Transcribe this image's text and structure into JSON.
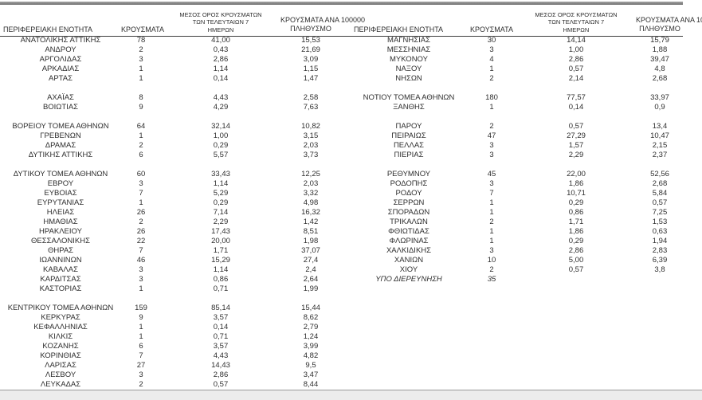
{
  "header": {
    "region": "ΠΕΡΙΦΕΡΕΙΑΚΗ ΕΝΟΤΗΤΑ",
    "cases": "ΚΡΟΥΣΜΑΤΑ",
    "avg7_lines": [
      "ΜΕΣΟΣ ΟΡΟΣ ΚΡΟΥΣΜΑΤΩΝ",
      "ΤΩΝ ΤΕΛΕΥΤΑΙΩΝ 7",
      "ΗΜΕΡΩΝ"
    ],
    "per100k_lines": [
      "ΚΡΟΥΣΜΑΤΑ ΑΝΑ 100000",
      "ΠΛΗΘΥΣΜΟ"
    ]
  },
  "left_table": {
    "rows": [
      {
        "region": "ΑΝΑΤΟΛΙΚΗΣ ΑΤΤΙΚΗΣ",
        "cases": "78",
        "avg": "41,00",
        "per": "15,53"
      },
      {
        "region": "ΑΝΔΡΟΥ",
        "cases": "2",
        "avg": "0,43",
        "per": "21,69"
      },
      {
        "region": "ΑΡΓΟΛΙΔΑΣ",
        "cases": "3",
        "avg": "2,86",
        "per": "3,09"
      },
      {
        "region": "ΑΡΚΑΔΙΑΣ",
        "cases": "1",
        "avg": "1,14",
        "per": "1,15"
      },
      {
        "region": "ΑΡΤΑΣ",
        "cases": "1",
        "avg": "0,14",
        "per": "1,47"
      },
      {
        "blank": true
      },
      {
        "region": "ΑΧΑΪΑΣ",
        "cases": "8",
        "avg": "4,43",
        "per": "2,58"
      },
      {
        "region": "ΒΟΙΩΤΙΑΣ",
        "cases": "9",
        "avg": "4,29",
        "per": "7,63"
      },
      {
        "blank": true
      },
      {
        "region": "ΒΟΡΕΙΟΥ ΤΟΜΕΑ ΑΘΗΝΩΝ",
        "cases": "64",
        "avg": "32,14",
        "per": "10,82"
      },
      {
        "region": "ΓΡΕΒΕΝΩΝ",
        "cases": "1",
        "avg": "1,00",
        "per": "3,15"
      },
      {
        "region": "ΔΡΑΜΑΣ",
        "cases": "2",
        "avg": "0,29",
        "per": "2,03"
      },
      {
        "region": "ΔΥΤΙΚΗΣ ΑΤΤΙΚΗΣ",
        "cases": "6",
        "avg": "5,57",
        "per": "3,73"
      },
      {
        "blank": true
      },
      {
        "region": "ΔΥΤΙΚΟΥ ΤΟΜΕΑ ΑΘΗΝΩΝ",
        "cases": "60",
        "avg": "33,43",
        "per": "12,25"
      },
      {
        "region": "ΕΒΡΟΥ",
        "cases": "3",
        "avg": "1,14",
        "per": "2,03"
      },
      {
        "region": "ΕΥΒΟΙΑΣ",
        "cases": "7",
        "avg": "5,29",
        "per": "3,32"
      },
      {
        "region": "ΕΥΡΥΤΑΝΙΑΣ",
        "cases": "1",
        "avg": "0,29",
        "per": "4,98"
      },
      {
        "region": "ΗΛΕΙΑΣ",
        "cases": "26",
        "avg": "7,14",
        "per": "16,32"
      },
      {
        "region": "ΗΜΑΘΙΑΣ",
        "cases": "2",
        "avg": "2,29",
        "per": "1,42"
      },
      {
        "region": "ΗΡΑΚΛΕΙΟΥ",
        "cases": "26",
        "avg": "17,43",
        "per": "8,51"
      },
      {
        "region": "ΘΕΣΣΑΛΟΝΙΚΗΣ",
        "cases": "22",
        "avg": "20,00",
        "per": "1,98"
      },
      {
        "region": "ΘΗΡΑΣ",
        "cases": "7",
        "avg": "1,71",
        "per": "37,07"
      },
      {
        "region": "ΙΩΑΝΝΙΝΩΝ",
        "cases": "46",
        "avg": "15,29",
        "per": "27,4"
      },
      {
        "region": "ΚΑΒΑΛΑΣ",
        "cases": "3",
        "avg": "1,14",
        "per": "2,4"
      },
      {
        "region": "ΚΑΡΔΙΤΣΑΣ",
        "cases": "3",
        "avg": "0,86",
        "per": "2,64"
      },
      {
        "region": "ΚΑΣΤΟΡΙΑΣ",
        "cases": "1",
        "avg": "0,71",
        "per": "1,99"
      },
      {
        "blank": true
      },
      {
        "region": "ΚΕΝΤΡΙΚΟΥ ΤΟΜΕΑ ΑΘΗΝΩΝ",
        "cases": "159",
        "avg": "85,14",
        "per": "15,44"
      },
      {
        "region": "ΚΕΡΚΥΡΑΣ",
        "cases": "9",
        "avg": "3,57",
        "per": "8,62"
      },
      {
        "region": "ΚΕΦΑΛΛΗΝΙΑΣ",
        "cases": "1",
        "avg": "0,14",
        "per": "2,79"
      },
      {
        "region": "ΚΙΛΚΙΣ",
        "cases": "1",
        "avg": "0,71",
        "per": "1,24"
      },
      {
        "region": "ΚΟΖΑΝΗΣ",
        "cases": "6",
        "avg": "3,57",
        "per": "3,99"
      },
      {
        "region": "ΚΟΡΙΝΘΙΑΣ",
        "cases": "7",
        "avg": "4,43",
        "per": "4,82"
      },
      {
        "region": "ΛΑΡΙΣΑΣ",
        "cases": "27",
        "avg": "14,43",
        "per": "9,5"
      },
      {
        "region": "ΛΕΣΒΟΥ",
        "cases": "3",
        "avg": "2,86",
        "per": "3,47"
      },
      {
        "region": "ΛΕΥΚΑΔΑΣ",
        "cases": "2",
        "avg": "0,57",
        "per": "8,44"
      }
    ]
  },
  "right_table": {
    "rows": [
      {
        "region": "ΜΑΓΝΗΣΙΑΣ",
        "cases": "30",
        "avg": "14,14",
        "per": "15,79"
      },
      {
        "region": "ΜΕΣΣΗΝΙΑΣ",
        "cases": "3",
        "avg": "1,00",
        "per": "1,88"
      },
      {
        "region": "ΜΥΚΟΝΟΥ",
        "cases": "4",
        "avg": "2,86",
        "per": "39,47"
      },
      {
        "region": "ΝΑΞΟΥ",
        "cases": "1",
        "avg": "0,57",
        "per": "4,8"
      },
      {
        "region": "ΝΗΣΩΝ",
        "cases": "2",
        "avg": "2,14",
        "per": "2,68"
      },
      {
        "blank": true
      },
      {
        "region": "ΝΟΤΙΟΥ ΤΟΜΕΑ ΑΘΗΝΩΝ",
        "cases": "180",
        "avg": "77,57",
        "per": "33,97"
      },
      {
        "region": "ΞΑΝΘΗΣ",
        "cases": "1",
        "avg": "0,14",
        "per": "0,9"
      },
      {
        "blank": true
      },
      {
        "region": "ΠΑΡΟΥ",
        "cases": "2",
        "avg": "0,57",
        "per": "13,4"
      },
      {
        "region": "ΠΕΙΡΑΙΩΣ",
        "cases": "47",
        "avg": "27,29",
        "per": "10,47"
      },
      {
        "region": "ΠΕΛΛΑΣ",
        "cases": "3",
        "avg": "1,57",
        "per": "2,15"
      },
      {
        "region": "ΠΙΕΡΙΑΣ",
        "cases": "3",
        "avg": "2,29",
        "per": "2,37"
      },
      {
        "blank": true
      },
      {
        "region": "ΡΕΘΥΜΝΟΥ",
        "cases": "45",
        "avg": "22,00",
        "per": "52,56"
      },
      {
        "region": "ΡΟΔΟΠΗΣ",
        "cases": "3",
        "avg": "1,86",
        "per": "2,68"
      },
      {
        "region": "ΡΟΔΟΥ",
        "cases": "7",
        "avg": "10,71",
        "per": "5,84"
      },
      {
        "region": "ΣΕΡΡΩΝ",
        "cases": "1",
        "avg": "0,29",
        "per": "0,57"
      },
      {
        "region": "ΣΠΟΡΑΔΩΝ",
        "cases": "1",
        "avg": "0,86",
        "per": "7,25"
      },
      {
        "region": "ΤΡΙΚΑΛΩΝ",
        "cases": "2",
        "avg": "1,71",
        "per": "1,53"
      },
      {
        "region": "ΦΘΙΩΤΙΔΑΣ",
        "cases": "1",
        "avg": "1,86",
        "per": "0,63"
      },
      {
        "region": "ΦΛΩΡΙΝΑΣ",
        "cases": "1",
        "avg": "0,29",
        "per": "1,94"
      },
      {
        "region": "ΧΑΛΚΙΔΙΚΗΣ",
        "cases": "3",
        "avg": "2,86",
        "per": "2,83"
      },
      {
        "region": "ΧΑΝΙΩΝ",
        "cases": "10",
        "avg": "5,00",
        "per": "6,39"
      },
      {
        "region": "ΧΙΟΥ",
        "cases": "2",
        "avg": "0,57",
        "per": "3,8"
      },
      {
        "region": "ΥΠΟ ΔΙΕΡΕΥΝΗΣΗ",
        "cases": "35",
        "avg": "",
        "per": "",
        "italic": true
      }
    ]
  },
  "colors": {
    "text": "#2e2e2e",
    "rule": "#3c3c3c",
    "footer": "#ececec"
  }
}
